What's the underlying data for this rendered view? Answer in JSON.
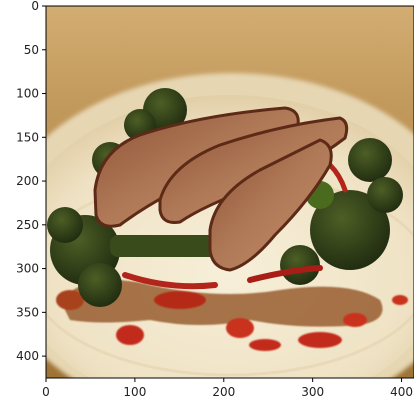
{
  "image": {
    "subject": "sliced duck breast on broccoli with red pepper and sauce on a white plate",
    "colors": {
      "background_top": "#c9a46a",
      "background_bottom": "#a87a3a",
      "plate": "#f1e6cc",
      "plate_shadow": "#dccba5",
      "meat": "#b27a57",
      "meat_crust": "#6b3320",
      "broccoli": "#2f3e1a",
      "sauce": "#8a3a12",
      "pepper": "#c5261b"
    }
  },
  "axes": {
    "x_ticks": [
      "0",
      "100",
      "200",
      "300",
      "400"
    ],
    "y_ticks": [
      "0",
      "50",
      "100",
      "150",
      "200",
      "250",
      "300",
      "350",
      "400"
    ],
    "xlim": [
      0,
      414
    ],
    "ylim": [
      0,
      425
    ]
  }
}
